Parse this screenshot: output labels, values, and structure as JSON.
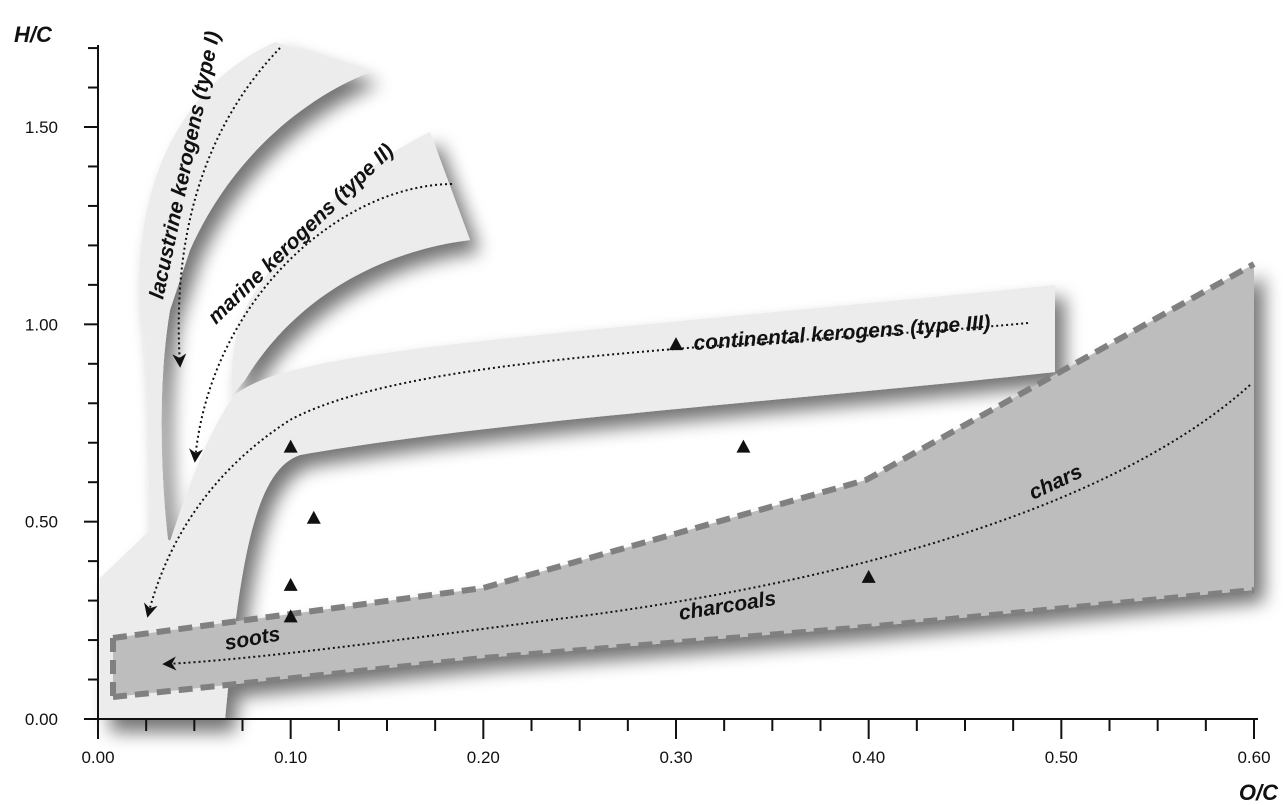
{
  "chart_data": {
    "type": "scatter",
    "title": "",
    "xlabel": "O/C",
    "ylabel": "H/C",
    "xlim": [
      0,
      0.6
    ],
    "ylim": [
      0,
      1.5
    ],
    "x_ticks": [
      "0.00",
      "0.10",
      "0.20",
      "0.30",
      "0.40",
      "0.50",
      "0.60"
    ],
    "y_ticks": [
      "0.00",
      "0.50",
      "1.00",
      "1.50"
    ],
    "grid": false,
    "legend": "none",
    "region_labels": {
      "lacustrine": "lacustrine kerogens (type I)",
      "marine": "marine kerogens (type II)",
      "continental": "continental kerogens (type III)",
      "chars": "chars",
      "charcoals": "charcoals",
      "soots": "soots"
    },
    "series": [
      {
        "marker": "triangle",
        "x": [
          0.3,
          0.1,
          0.335,
          0.112,
          0.1,
          0.1,
          0.4
        ],
        "y": [
          0.95,
          0.69,
          0.69,
          0.51,
          0.34,
          0.26,
          0.36
        ]
      }
    ],
    "colors": {
      "light_band": "#ececec",
      "dark_band": "#bdbdbd",
      "dashed_edge": "#808080",
      "shadow": "#5a5a5a"
    }
  }
}
